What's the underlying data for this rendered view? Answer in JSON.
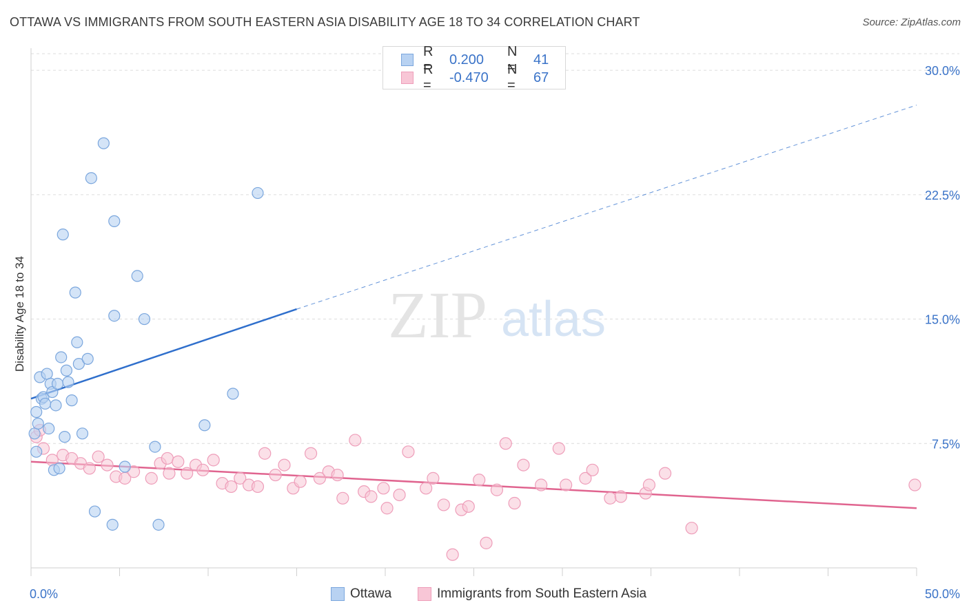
{
  "header": {
    "title": "OTTAWA VS IMMIGRANTS FROM SOUTH EASTERN ASIA DISABILITY AGE 18 TO 34 CORRELATION CHART",
    "source": "Source: ZipAtlas.com"
  },
  "watermark": {
    "zip": "ZIP",
    "atlas": "atlas"
  },
  "legend_top": {
    "rows": [
      {
        "r_label": "R =",
        "r_value": "0.200",
        "n_label": "N =",
        "n_value": "41"
      },
      {
        "r_label": "R =",
        "r_value": "-0.470",
        "n_label": "N =",
        "n_value": "67"
      }
    ]
  },
  "colors": {
    "ottawa_fill": "#b8d2f2",
    "ottawa_stroke": "#7aa6dd",
    "ottawa_line": "#2f6fcc",
    "asia_fill": "#f8c6d6",
    "asia_stroke": "#ee9db9",
    "asia_line": "#e0648f",
    "tick_text": "#3a73c8",
    "grid": "#dcdcdc"
  },
  "chart_data": {
    "type": "scatter",
    "title": "OTTAWA VS IMMIGRANTS FROM SOUTH EASTERN ASIA DISABILITY AGE 18 TO 34 CORRELATION CHART",
    "xlabel": "",
    "ylabel": "Disability Age 18 to 34",
    "xlim": [
      0,
      50
    ],
    "ylim": [
      0,
      31
    ],
    "x_tick_labels": [
      "0.0%",
      "50.0%"
    ],
    "y_ticks": [
      7.5,
      15.0,
      22.5,
      30.0
    ],
    "y_tick_labels": [
      "7.5%",
      "15.0%",
      "22.5%",
      "30.0%"
    ],
    "grid": "horizontal dashed",
    "legend": {
      "position": "bottom-center",
      "entries": [
        "Ottawa",
        "Immigrants from South Eastern Asia"
      ]
    },
    "series": [
      {
        "name": "Ottawa",
        "r": 0.2,
        "n": 41,
        "trend": {
          "x": [
            0,
            15
          ],
          "y": [
            10.2,
            15.6
          ],
          "dashed_extension_to": [
            50,
            27.9
          ]
        },
        "points": [
          [
            0.3,
            7.0
          ],
          [
            0.2,
            8.1
          ],
          [
            0.3,
            9.4
          ],
          [
            0.4,
            8.7
          ],
          [
            0.5,
            11.5
          ],
          [
            0.6,
            10.2
          ],
          [
            0.7,
            10.3
          ],
          [
            0.8,
            9.9
          ],
          [
            0.9,
            11.7
          ],
          [
            1.0,
            8.4
          ],
          [
            1.1,
            11.1
          ],
          [
            1.2,
            10.6
          ],
          [
            1.3,
            5.9
          ],
          [
            1.4,
            9.8
          ],
          [
            1.5,
            11.1
          ],
          [
            1.6,
            6.0
          ],
          [
            1.7,
            12.7
          ],
          [
            1.8,
            20.1
          ],
          [
            1.9,
            7.9
          ],
          [
            2.0,
            11.9
          ],
          [
            2.1,
            11.2
          ],
          [
            2.3,
            10.1
          ],
          [
            2.5,
            16.6
          ],
          [
            2.6,
            13.6
          ],
          [
            2.7,
            12.3
          ],
          [
            2.9,
            8.1
          ],
          [
            3.2,
            12.6
          ],
          [
            3.4,
            23.5
          ],
          [
            3.6,
            3.4
          ],
          [
            4.1,
            25.6
          ],
          [
            4.6,
            2.6
          ],
          [
            4.7,
            15.2
          ],
          [
            4.7,
            20.9
          ],
          [
            5.3,
            6.1
          ],
          [
            6.0,
            17.6
          ],
          [
            6.4,
            15.0
          ],
          [
            7.0,
            7.3
          ],
          [
            7.2,
            2.6
          ],
          [
            9.8,
            8.6
          ],
          [
            11.4,
            10.5
          ],
          [
            12.8,
            22.6
          ]
        ]
      },
      {
        "name": "Immigrants from South Eastern Asia",
        "r": -0.47,
        "n": 67,
        "trend": {
          "x": [
            0,
            50
          ],
          "y": [
            6.4,
            3.6
          ]
        },
        "points": [
          [
            0.3,
            7.9
          ],
          [
            0.5,
            8.3
          ],
          [
            0.7,
            7.2
          ],
          [
            1.2,
            6.5
          ],
          [
            1.8,
            6.8
          ],
          [
            2.3,
            6.6
          ],
          [
            2.8,
            6.3
          ],
          [
            3.3,
            6.0
          ],
          [
            3.8,
            6.7
          ],
          [
            4.3,
            6.2
          ],
          [
            4.8,
            5.5
          ],
          [
            5.3,
            5.4
          ],
          [
            5.8,
            5.8
          ],
          [
            6.8,
            5.4
          ],
          [
            7.3,
            6.3
          ],
          [
            7.7,
            6.6
          ],
          [
            7.8,
            5.7
          ],
          [
            8.3,
            6.4
          ],
          [
            8.8,
            5.7
          ],
          [
            9.3,
            6.2
          ],
          [
            9.7,
            5.9
          ],
          [
            10.3,
            6.5
          ],
          [
            10.8,
            5.1
          ],
          [
            11.3,
            4.9
          ],
          [
            11.8,
            5.4
          ],
          [
            12.3,
            5.0
          ],
          [
            12.8,
            4.9
          ],
          [
            13.2,
            6.9
          ],
          [
            13.8,
            5.6
          ],
          [
            14.3,
            6.2
          ],
          [
            14.8,
            4.8
          ],
          [
            15.2,
            5.2
          ],
          [
            15.8,
            6.9
          ],
          [
            16.3,
            5.4
          ],
          [
            16.8,
            5.8
          ],
          [
            17.3,
            5.6
          ],
          [
            17.6,
            4.2
          ],
          [
            18.3,
            7.7
          ],
          [
            18.8,
            4.6
          ],
          [
            19.2,
            4.3
          ],
          [
            19.9,
            4.8
          ],
          [
            20.1,
            3.6
          ],
          [
            20.8,
            4.4
          ],
          [
            21.3,
            7.0
          ],
          [
            22.3,
            4.8
          ],
          [
            22.7,
            5.4
          ],
          [
            23.3,
            3.8
          ],
          [
            23.8,
            0.8
          ],
          [
            24.3,
            3.5
          ],
          [
            24.7,
            3.7
          ],
          [
            25.3,
            5.3
          ],
          [
            25.7,
            1.5
          ],
          [
            26.3,
            4.7
          ],
          [
            26.8,
            7.5
          ],
          [
            27.3,
            3.9
          ],
          [
            27.8,
            6.2
          ],
          [
            28.8,
            5.0
          ],
          [
            29.8,
            7.2
          ],
          [
            30.2,
            5.0
          ],
          [
            31.3,
            5.4
          ],
          [
            31.7,
            5.9
          ],
          [
            32.7,
            4.2
          ],
          [
            33.3,
            4.3
          ],
          [
            34.7,
            4.5
          ],
          [
            34.9,
            5.0
          ],
          [
            35.8,
            5.7
          ],
          [
            37.3,
            2.4
          ],
          [
            49.9,
            5.0
          ]
        ]
      }
    ]
  },
  "bottom_legend": {
    "ottawa": "Ottawa",
    "asia": "Immigrants from South Eastern Asia"
  }
}
